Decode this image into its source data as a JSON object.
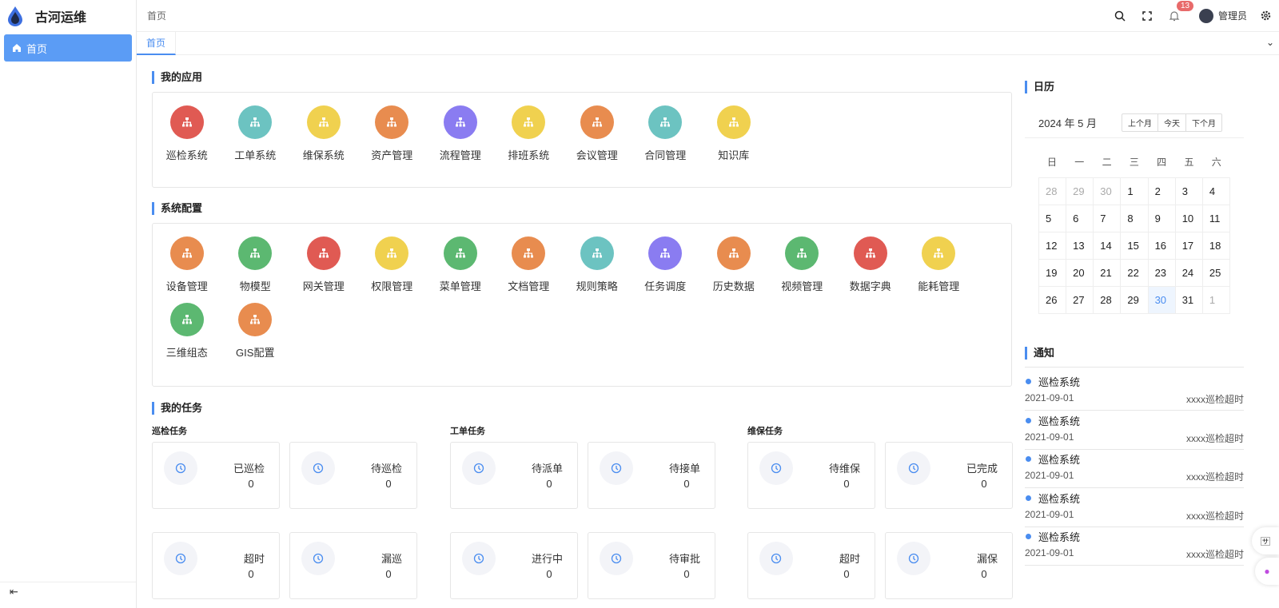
{
  "app": {
    "title": "古河运维"
  },
  "sidebar": {
    "items": [
      {
        "label": "首页",
        "icon": "home-icon"
      }
    ]
  },
  "header": {
    "breadcrumb": "首页",
    "notification_count": "13",
    "user": "管理员"
  },
  "tabs": [
    {
      "label": "首页",
      "active": true
    }
  ],
  "my_apps": {
    "title": "我的应用",
    "items": [
      {
        "label": "巡检系统",
        "color": "#e05a53"
      },
      {
        "label": "工单系统",
        "color": "#6cc3c1"
      },
      {
        "label": "维保系统",
        "color": "#f0d14f"
      },
      {
        "label": "资产管理",
        "color": "#e88c4f"
      },
      {
        "label": "流程管理",
        "color": "#8a7cf1"
      },
      {
        "label": "排班系统",
        "color": "#f0d14f"
      },
      {
        "label": "会议管理",
        "color": "#e88c4f"
      },
      {
        "label": "合同管理",
        "color": "#6cc3c1"
      },
      {
        "label": "知识库",
        "color": "#f0d14f"
      }
    ]
  },
  "sys_config": {
    "title": "系统配置",
    "items": [
      {
        "label": "设备管理",
        "color": "#e88c4f"
      },
      {
        "label": "物模型",
        "color": "#5cb871"
      },
      {
        "label": "网关管理",
        "color": "#e05a53"
      },
      {
        "label": "权限管理",
        "color": "#f0d14f"
      },
      {
        "label": "菜单管理",
        "color": "#5cb871"
      },
      {
        "label": "文档管理",
        "color": "#e88c4f"
      },
      {
        "label": "规则策略",
        "color": "#6cc3c1"
      },
      {
        "label": "任务调度",
        "color": "#8a7cf1"
      },
      {
        "label": "历史数据",
        "color": "#e88c4f"
      },
      {
        "label": "视频管理",
        "color": "#5cb871"
      },
      {
        "label": "数据字典",
        "color": "#e05a53"
      },
      {
        "label": "能耗管理",
        "color": "#f0d14f"
      },
      {
        "label": "三维组态",
        "color": "#5cb871"
      },
      {
        "label": "GIS配置",
        "color": "#e88c4f"
      }
    ]
  },
  "tasks": {
    "title": "我的任务",
    "groups": [
      {
        "title": "巡检任务",
        "cards": [
          {
            "label": "已巡检",
            "value": "0"
          },
          {
            "label": "待巡检",
            "value": "0"
          },
          {
            "label": "超时",
            "value": "0"
          },
          {
            "label": "漏巡",
            "value": "0"
          }
        ]
      },
      {
        "title": "工单任务",
        "cards": [
          {
            "label": "待派单",
            "value": "0"
          },
          {
            "label": "待接单",
            "value": "0"
          },
          {
            "label": "进行中",
            "value": "0"
          },
          {
            "label": "待审批",
            "value": "0"
          }
        ]
      },
      {
        "title": "维保任务",
        "cards": [
          {
            "label": "待维保",
            "value": "0"
          },
          {
            "label": "已完成",
            "value": "0"
          },
          {
            "label": "超时",
            "value": "0"
          },
          {
            "label": "漏保",
            "value": "0"
          }
        ]
      }
    ]
  },
  "calendar": {
    "title": "日历",
    "month_label": "2024 年 5 月",
    "buttons": [
      "上个月",
      "今天",
      "下个月"
    ],
    "weekdays": [
      "日",
      "一",
      "二",
      "三",
      "四",
      "五",
      "六"
    ],
    "days": [
      "28",
      "29",
      "30",
      "1",
      "2",
      "3",
      "4",
      "5",
      "6",
      "7",
      "8",
      "9",
      "10",
      "11",
      "12",
      "13",
      "14",
      "15",
      "16",
      "17",
      "18",
      "19",
      "20",
      "21",
      "22",
      "23",
      "24",
      "25",
      "26",
      "27",
      "28",
      "29",
      "30",
      "31",
      "1"
    ],
    "selected": "30"
  },
  "notices": {
    "title": "通知",
    "items": [
      {
        "title": "巡检系统",
        "date": "2021-09-01",
        "msg": "xxxx巡检超时"
      },
      {
        "title": "巡检系统",
        "date": "2021-09-01",
        "msg": "xxxx巡检超时"
      },
      {
        "title": "巡检系统",
        "date": "2021-09-01",
        "msg": "xxxx巡检超时"
      },
      {
        "title": "巡检系统",
        "date": "2021-09-01",
        "msg": "xxxx巡检超时"
      },
      {
        "title": "巡检系统",
        "date": "2021-09-01",
        "msg": "xxxx巡检超时"
      }
    ]
  },
  "accent": "#4a8df0"
}
